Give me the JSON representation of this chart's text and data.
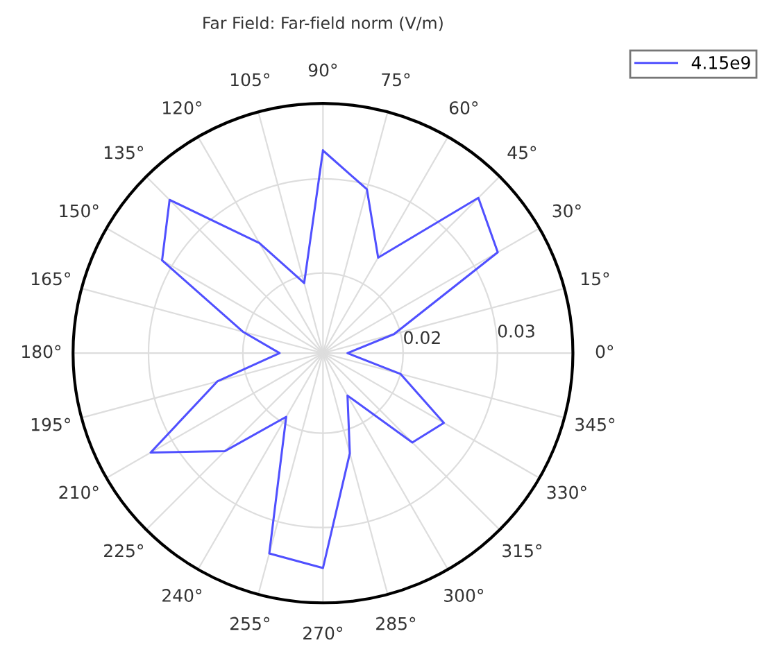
{
  "chart_data": {
    "type": "radar",
    "title": "Far Field: Far-field norm (V/m)",
    "categories": [
      "90°",
      "75°",
      "60°",
      "45°",
      "30°",
      "15°",
      "0°",
      "345°",
      "330°",
      "315°",
      "300°",
      "285°",
      "270°",
      "255°",
      "240°",
      "225°",
      "210°",
      "195°",
      "180°",
      "165°",
      "150°",
      "135°",
      "120°",
      "105°"
    ],
    "ylim": [
      0.0115,
      0.038
    ],
    "yticks": [
      0.02,
      0.03
    ],
    "grid": true,
    "legend": "top right",
    "marker": "none",
    "line_style": "solid",
    "series": [
      {
        "name": "4.15e9",
        "color": "#5050ff",
        "values": [
          0.033,
          0.0295,
          0.0232,
          0.0348,
          0.0329,
          0.0193,
          0.0141,
          0.02,
          0.0263,
          0.0249,
          0.0167,
          0.0225,
          0.0343,
          0.0335,
          0.0193,
          0.0262,
          0.0326,
          0.0231,
          0.0161,
          0.0203,
          0.0312,
          0.0345,
          0.025,
          0.0192
        ]
      }
    ]
  }
}
